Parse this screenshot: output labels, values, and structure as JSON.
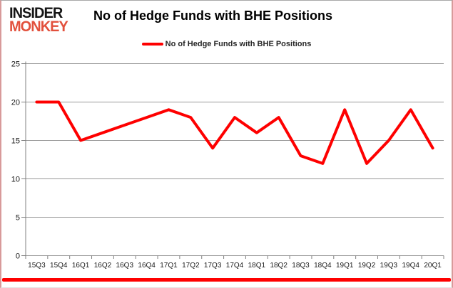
{
  "branding": {
    "logo_line1": "INSIDER",
    "logo_line2": "MONKEY",
    "logo_color_primary": "#151515",
    "logo_color_secondary": "#e2503c"
  },
  "header": {
    "title": "No of Hedge Funds with BHE Positions"
  },
  "legend": {
    "label": "No of Hedge Funds with BHE Positions",
    "swatch_color": "#fe0000"
  },
  "footer": {
    "accent_bar_color": "#fe0000"
  },
  "chart_data": {
    "type": "line",
    "title": "No of Hedge Funds with BHE Positions",
    "categories": [
      "15Q3",
      "15Q4",
      "16Q1",
      "16Q2",
      "16Q3",
      "16Q4",
      "17Q1",
      "17Q2",
      "17Q3",
      "17Q4",
      "18Q1",
      "18Q2",
      "18Q3",
      "18Q4",
      "19Q1",
      "19Q2",
      "19Q3",
      "19Q4",
      "20Q1"
    ],
    "series": [
      {
        "name": "No of Hedge Funds with BHE Positions",
        "color": "#fe0000",
        "values": [
          20,
          20,
          15,
          16,
          17,
          18,
          19,
          18,
          14,
          18,
          16,
          18,
          13,
          12,
          19,
          12,
          15,
          19,
          14
        ]
      }
    ],
    "xlabel": "",
    "ylabel": "",
    "ylim": [
      0,
      25
    ],
    "yticks": [
      0,
      5,
      10,
      15,
      20,
      25
    ],
    "grid": true,
    "legend_position": "top",
    "gridline_color": "#999999",
    "axis_color": "#808080",
    "tick_label_color": "#1a1a1a"
  }
}
